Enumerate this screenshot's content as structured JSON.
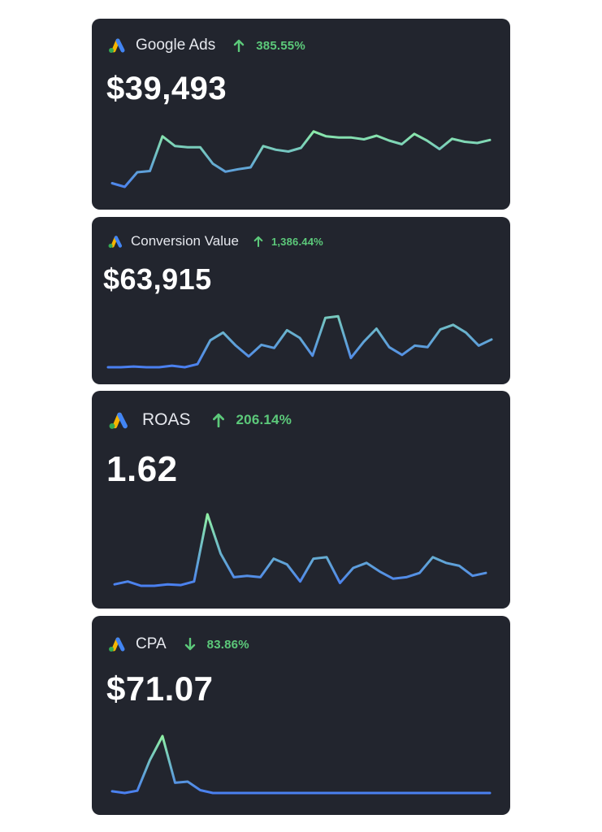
{
  "cards": [
    {
      "title": "Google Ads",
      "change": "385.55%",
      "direction": "up",
      "value": "$39,493",
      "trend": [
        0.1,
        0.04,
        0.28,
        0.3,
        0.87,
        0.71,
        0.69,
        0.69,
        0.42,
        0.29,
        0.33,
        0.36,
        0.71,
        0.65,
        0.62,
        0.68,
        0.95,
        0.87,
        0.85,
        0.85,
        0.82,
        0.88,
        0.8,
        0.74,
        0.91,
        0.8,
        0.66,
        0.83,
        0.78,
        0.76,
        0.81
      ]
    },
    {
      "title": "Conversion Value",
      "change": "1,386.44%",
      "direction": "up",
      "value": "$63,915",
      "trend": [
        0.0,
        0.0,
        0.01,
        0.0,
        0.0,
        0.02,
        0.0,
        0.04,
        0.35,
        0.45,
        0.28,
        0.14,
        0.29,
        0.25,
        0.48,
        0.38,
        0.15,
        0.64,
        0.66,
        0.12,
        0.33,
        0.5,
        0.26,
        0.16,
        0.28,
        0.26,
        0.49,
        0.55,
        0.45,
        0.28,
        0.36
      ]
    },
    {
      "title": "ROAS",
      "change": "206.14%",
      "direction": "up",
      "value": "1.62",
      "trend": [
        0.02,
        0.06,
        0.0,
        0.0,
        0.02,
        0.01,
        0.06,
        1.0,
        0.45,
        0.12,
        0.14,
        0.12,
        0.38,
        0.3,
        0.06,
        0.38,
        0.4,
        0.04,
        0.25,
        0.32,
        0.2,
        0.1,
        0.12,
        0.18,
        0.4,
        0.32,
        0.28,
        0.14,
        0.18
      ]
    },
    {
      "title": "CPA",
      "change": "83.86%",
      "direction": "down",
      "value": "$71.07",
      "trend": [
        0.03,
        0.0,
        0.04,
        0.58,
        1.0,
        0.18,
        0.2,
        0.05,
        0.0,
        0.0,
        0.0,
        0.0,
        0.0,
        0.0,
        0.0,
        0.0,
        0.0,
        0.0,
        0.0,
        0.0,
        0.0,
        0.0,
        0.0,
        0.0,
        0.0,
        0.0,
        0.0,
        0.0,
        0.0,
        0.0,
        0.0
      ]
    }
  ],
  "colors": {
    "card_bg": "#22252e",
    "positive": "#5cc97a",
    "line_low": "#4a7ff0",
    "line_high": "#8ff0a4"
  }
}
